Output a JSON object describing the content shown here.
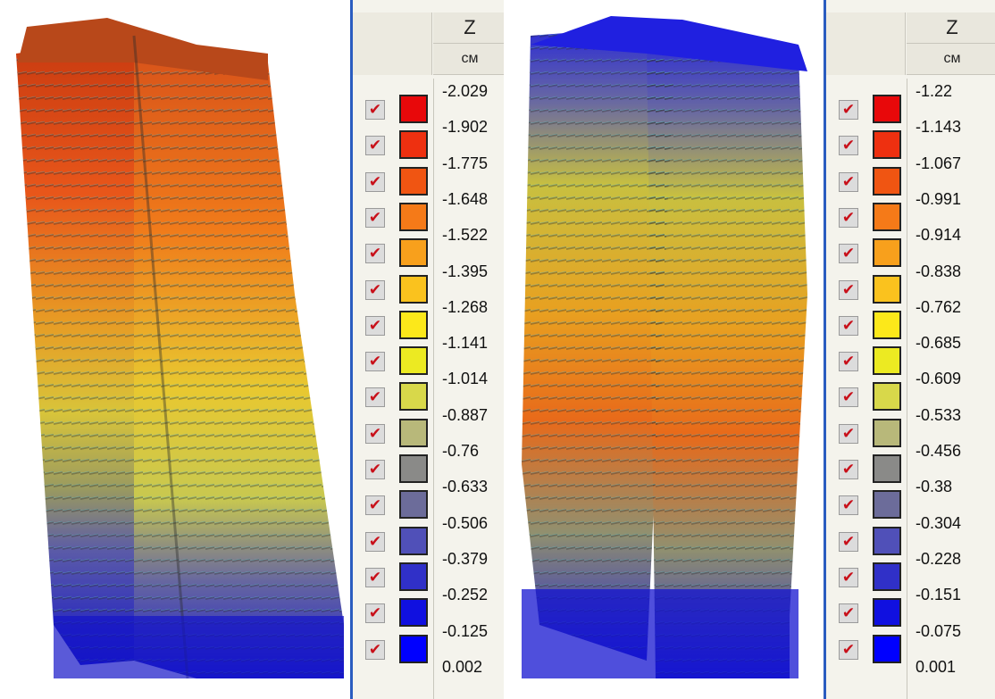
{
  "left_legend": {
    "header": "Z",
    "unit": "см",
    "values": [
      "-2.029",
      "-1.902",
      "-1.775",
      "-1.648",
      "-1.522",
      "-1.395",
      "-1.268",
      "-1.141",
      "-1.014",
      "-0.887",
      "-0.76",
      "-0.633",
      "-0.506",
      "-0.379",
      "-0.252",
      "-0.125",
      "0.002"
    ],
    "colors": [
      "#e8080a",
      "#ee3010",
      "#f05512",
      "#f57a18",
      "#f8a01c",
      "#fac21e",
      "#fce81a",
      "#ecea22",
      "#d8d84a",
      "#b8b87a",
      "#8a8a88",
      "#6c6c9a",
      "#5050b8",
      "#3030c8",
      "#1010e0",
      "#0000ff"
    ]
  },
  "right_legend": {
    "header": "Z",
    "unit": "см",
    "values": [
      "-1.22",
      "-1.143",
      "-1.067",
      "-0.991",
      "-0.914",
      "-0.838",
      "-0.762",
      "-0.685",
      "-0.609",
      "-0.533",
      "-0.456",
      "-0.38",
      "-0.304",
      "-0.228",
      "-0.151",
      "-0.075",
      "0.001"
    ],
    "colors": [
      "#e8080a",
      "#ee3010",
      "#f05512",
      "#f57a18",
      "#f8a01c",
      "#fac21e",
      "#fce81a",
      "#ecea22",
      "#d8d84a",
      "#b8b87a",
      "#8a8a88",
      "#6c6c9a",
      "#5050b8",
      "#3030c8",
      "#1010e0",
      "#0000ff"
    ]
  },
  "checkbox_glyph": "✔"
}
